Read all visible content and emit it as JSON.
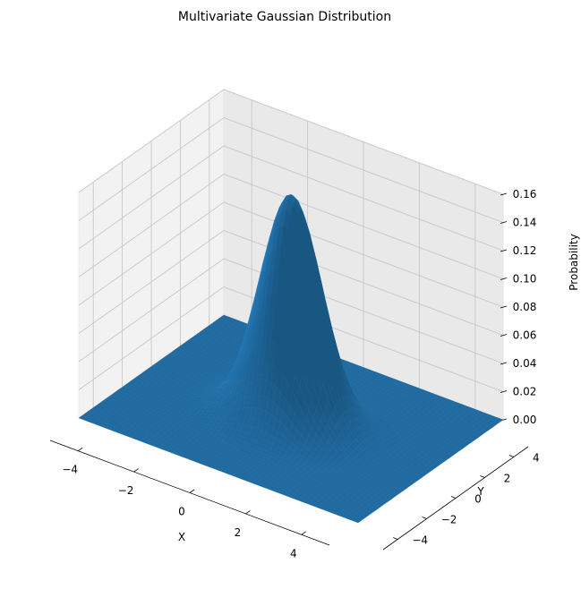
{
  "chart_data": {
    "type": "surface",
    "title": "Multivariate Gaussian Distribution",
    "xlabel": "X",
    "ylabel": "Y",
    "zlabel": "Probability",
    "xlim": [
      -5,
      5
    ],
    "ylim": [
      -5,
      5
    ],
    "zlim": [
      0,
      0.16
    ],
    "x_ticks": [
      -4,
      -2,
      0,
      2,
      4
    ],
    "y_ticks": [
      -4,
      -2,
      0,
      2,
      4
    ],
    "z_ticks": [
      0.0,
      0.02,
      0.04,
      0.06,
      0.08,
      0.1,
      0.12,
      0.14,
      0.16
    ],
    "x_tick_labels": [
      "−4",
      "−2",
      "0",
      "2",
      "4"
    ],
    "y_tick_labels": [
      "−4",
      "−2",
      "0",
      "2",
      "4"
    ],
    "z_tick_labels": [
      "0.00",
      "0.02",
      "0.04",
      "0.06",
      "0.08",
      "0.10",
      "0.12",
      "0.14",
      "0.16"
    ],
    "function": "bivariate normal density",
    "mean": [
      0,
      0
    ],
    "covariance": [
      [
        1,
        0
      ],
      [
        0,
        1
      ]
    ],
    "peak_value": 0.159,
    "surface_color": "#1f6aa0",
    "grid": true,
    "pane_color": "#f2f2f2"
  }
}
